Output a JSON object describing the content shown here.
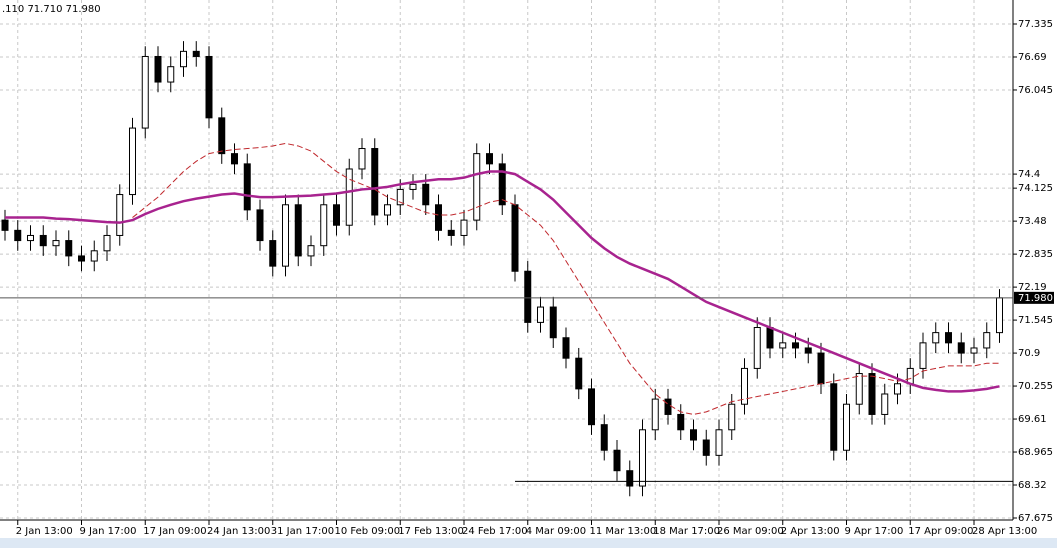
{
  "chart_data": {
    "type": "candlestick",
    "header_text": ".110 71.710 71.980",
    "categories": [
      null,
      "2 Jan 13:00",
      null,
      null,
      null,
      null,
      "9 Jan 17:00",
      null,
      null,
      null,
      null,
      "17 Jan 09:00",
      null,
      null,
      null,
      null,
      "24 Jan 13:00",
      null,
      null,
      null,
      null,
      "31 Jan 17:00",
      null,
      null,
      null,
      null,
      "10 Feb 09:00",
      null,
      null,
      null,
      null,
      "17 Feb 13:00",
      null,
      null,
      null,
      null,
      "24 Feb 17:00",
      null,
      null,
      null,
      null,
      "4 Mar 09:00",
      null,
      null,
      null,
      null,
      "11 Mar 13:00",
      null,
      null,
      null,
      null,
      "18 Mar 17:00",
      null,
      null,
      null,
      null,
      "26 Mar 09:00",
      null,
      null,
      null,
      null,
      "2 Apr 13:00",
      null,
      null,
      null,
      null,
      "9 Apr 17:00",
      null,
      null,
      null,
      null,
      "17 Apr 09:00",
      null,
      null,
      null,
      null,
      "28 Apr 13:00",
      null,
      null
    ],
    "ohlc": {
      "open": [
        73.5,
        73.3,
        73.1,
        73.2,
        73.0,
        73.1,
        72.8,
        72.7,
        72.9,
        73.2,
        74.0,
        75.3,
        76.7,
        76.2,
        76.5,
        76.8,
        76.7,
        75.5,
        74.8,
        74.6,
        73.7,
        73.1,
        72.6,
        73.8,
        72.8,
        73.0,
        73.8,
        73.4,
        74.5,
        74.9,
        73.6,
        73.8,
        74.1,
        74.2,
        73.8,
        73.3,
        73.2,
        73.5,
        74.8,
        74.6,
        73.8,
        72.5,
        71.5,
        71.8,
        71.2,
        70.8,
        70.2,
        69.5,
        69.0,
        68.6,
        68.3,
        69.4,
        70.0,
        69.7,
        69.4,
        69.2,
        68.9,
        69.4,
        69.9,
        70.6,
        71.4,
        71.0,
        71.1,
        71.0,
        70.9,
        70.3,
        69.0,
        69.9,
        70.5,
        69.7,
        70.1,
        70.3,
        70.6,
        71.1,
        71.3,
        71.1,
        70.9,
        71.0,
        71.3
      ],
      "high": [
        73.7,
        73.5,
        73.4,
        73.4,
        73.3,
        73.3,
        73.0,
        73.1,
        73.4,
        74.2,
        75.5,
        76.9,
        76.9,
        76.7,
        77.0,
        77.0,
        76.9,
        75.7,
        75.0,
        74.8,
        73.9,
        73.3,
        74.0,
        74.0,
        73.2,
        74.0,
        74.0,
        74.7,
        75.1,
        75.1,
        74.0,
        74.3,
        74.4,
        74.4,
        74.0,
        73.5,
        73.7,
        75.0,
        75.0,
        74.8,
        74.0,
        72.7,
        72.0,
        72.0,
        71.4,
        71.0,
        70.4,
        69.7,
        69.2,
        68.8,
        69.6,
        70.2,
        70.2,
        69.9,
        69.6,
        69.4,
        69.6,
        70.1,
        70.8,
        71.6,
        71.6,
        71.3,
        71.3,
        71.2,
        71.1,
        70.5,
        70.1,
        70.7,
        70.7,
        70.3,
        70.5,
        70.8,
        71.3,
        71.5,
        71.5,
        71.3,
        71.2,
        71.5,
        72.15
      ],
      "low": [
        73.1,
        72.9,
        72.9,
        72.8,
        72.8,
        72.6,
        72.5,
        72.5,
        72.7,
        73.0,
        73.8,
        75.1,
        76.0,
        76.0,
        76.3,
        76.5,
        75.3,
        74.6,
        74.4,
        73.5,
        72.9,
        72.4,
        72.4,
        72.6,
        72.6,
        72.8,
        73.2,
        73.2,
        74.3,
        73.4,
        73.4,
        73.6,
        73.9,
        73.6,
        73.1,
        73.0,
        73.0,
        73.3,
        74.4,
        73.6,
        72.3,
        71.3,
        71.3,
        71.0,
        70.6,
        70.0,
        69.3,
        68.8,
        68.4,
        68.1,
        68.1,
        69.2,
        69.5,
        69.2,
        69.0,
        68.7,
        68.7,
        69.2,
        69.7,
        70.4,
        70.8,
        70.8,
        70.8,
        70.7,
        70.1,
        68.8,
        68.8,
        69.7,
        69.5,
        69.5,
        69.9,
        70.1,
        70.4,
        70.9,
        70.9,
        70.7,
        70.7,
        70.8,
        71.1
      ],
      "close": [
        73.3,
        73.1,
        73.2,
        73.0,
        73.1,
        72.8,
        72.7,
        72.9,
        73.2,
        74.0,
        75.3,
        76.7,
        76.2,
        76.5,
        76.8,
        76.7,
        75.5,
        74.8,
        74.6,
        73.7,
        73.1,
        72.6,
        73.8,
        72.8,
        73.0,
        73.8,
        73.4,
        74.5,
        74.9,
        73.6,
        73.8,
        74.1,
        74.2,
        73.8,
        73.3,
        73.2,
        73.5,
        74.8,
        74.6,
        73.8,
        72.5,
        71.5,
        71.8,
        71.2,
        70.8,
        70.2,
        69.5,
        69.0,
        68.6,
        68.3,
        69.4,
        70.0,
        69.7,
        69.4,
        69.2,
        68.9,
        69.4,
        69.9,
        70.6,
        71.4,
        71.0,
        71.1,
        71.0,
        70.9,
        70.3,
        69.0,
        69.9,
        70.5,
        69.7,
        70.1,
        70.3,
        70.6,
        71.1,
        71.3,
        71.1,
        70.9,
        71.0,
        71.3,
        71.98
      ]
    },
    "ma_slow": {
      "color": "#a8238f",
      "values": [
        73.55,
        73.55,
        73.55,
        73.55,
        73.53,
        73.52,
        73.5,
        73.48,
        73.46,
        73.45,
        73.5,
        73.62,
        73.72,
        73.8,
        73.87,
        73.92,
        73.96,
        74.0,
        74.02,
        73.98,
        73.95,
        73.95,
        73.96,
        73.97,
        73.98,
        74.0,
        74.02,
        74.06,
        74.1,
        74.12,
        74.15,
        74.2,
        74.24,
        74.27,
        74.3,
        74.3,
        74.33,
        74.4,
        74.45,
        74.45,
        74.4,
        74.25,
        74.1,
        73.9,
        73.65,
        73.4,
        73.15,
        72.95,
        72.78,
        72.65,
        72.55,
        72.45,
        72.35,
        72.2,
        72.05,
        71.9,
        71.8,
        71.7,
        71.6,
        71.5,
        71.4,
        71.3,
        71.2,
        71.1,
        71.0,
        70.9,
        70.8,
        70.7,
        70.6,
        70.5,
        70.4,
        70.3,
        70.22,
        70.18,
        70.15,
        70.15,
        70.17,
        70.2,
        70.25
      ]
    },
    "ma_fast": {
      "color": "#c0282d",
      "values": [
        null,
        null,
        null,
        null,
        null,
        null,
        null,
        null,
        null,
        null,
        73.55,
        73.75,
        73.95,
        74.2,
        74.45,
        74.65,
        74.8,
        74.85,
        74.88,
        74.9,
        74.92,
        74.95,
        75.0,
        74.95,
        74.85,
        74.65,
        74.45,
        74.3,
        74.2,
        74.1,
        73.95,
        73.85,
        73.75,
        73.65,
        73.6,
        73.6,
        73.65,
        73.75,
        73.85,
        73.9,
        73.8,
        73.6,
        73.4,
        73.1,
        72.7,
        72.3,
        71.9,
        71.5,
        71.1,
        70.7,
        70.4,
        70.1,
        69.9,
        69.75,
        69.7,
        69.75,
        69.85,
        69.95,
        70.0,
        70.05,
        70.1,
        70.15,
        70.2,
        70.25,
        70.3,
        70.35,
        70.4,
        70.45,
        70.45,
        70.4,
        70.35,
        70.4,
        70.55,
        70.6,
        70.65,
        70.65,
        70.65,
        70.7,
        70.7
      ]
    },
    "last_price": 71.98,
    "last_price_label": "71.980",
    "support_level": 68.39,
    "ylim": [
      67.675,
      77.335
    ],
    "yticks": [
      67.675,
      68.32,
      68.965,
      69.61,
      70.255,
      70.9,
      71.545,
      72.19,
      72.835,
      73.48,
      74.125,
      74.4,
      76.045,
      76.69,
      77.335
    ],
    "grid": true
  }
}
